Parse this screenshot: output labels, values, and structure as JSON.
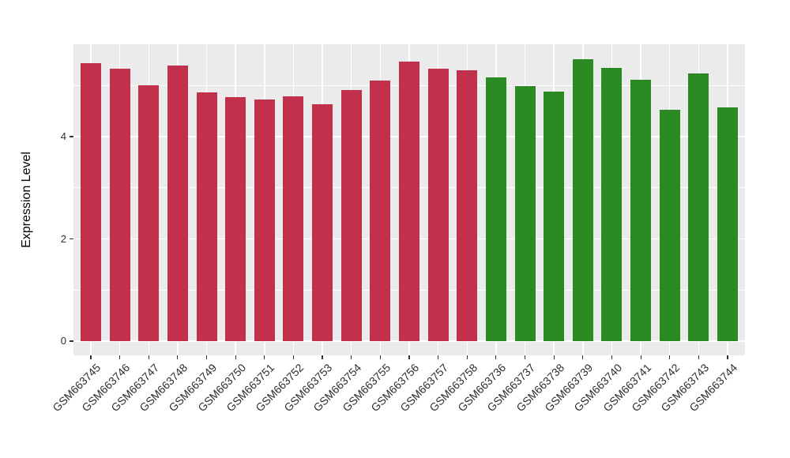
{
  "figure": {
    "background": "#FFFFFF"
  },
  "chart_data": {
    "type": "bar",
    "title": "",
    "xlabel": "",
    "ylabel": "Expression Level",
    "ylim": [
      0,
      5.8
    ],
    "yticks": [
      0,
      2,
      4
    ],
    "ytick_labels": [
      "0",
      "2",
      "4"
    ],
    "yticks_minor": [
      1,
      3,
      5
    ],
    "grid": "on",
    "legend": "none",
    "panel_background": "#EBEBEB",
    "gridline_color": "#FFFFFF",
    "tick_color": "#333333",
    "axis_text_color": "#2E2E2E",
    "bar_width_fraction": 0.71,
    "categories": [
      "GSM663745",
      "GSM663746",
      "GSM663747",
      "GSM663748",
      "GSM663749",
      "GSM663750",
      "GSM663751",
      "GSM663752",
      "GSM663753",
      "GSM663754",
      "GSM663755",
      "GSM663756",
      "GSM663757",
      "GSM663758",
      "GSM663736",
      "GSM663737",
      "GSM663738",
      "GSM663739",
      "GSM663740",
      "GSM663741",
      "GSM663742",
      "GSM663743",
      "GSM663744"
    ],
    "values": [
      5.44,
      5.33,
      5.0,
      5.39,
      4.86,
      4.78,
      4.73,
      4.79,
      4.63,
      4.91,
      5.1,
      5.47,
      5.33,
      5.29,
      5.16,
      4.99,
      4.88,
      5.52,
      5.35,
      5.11,
      4.53,
      5.24,
      4.57
    ],
    "groups": [
      "red",
      "red",
      "red",
      "red",
      "red",
      "red",
      "red",
      "red",
      "red",
      "red",
      "red",
      "red",
      "red",
      "red",
      "green",
      "green",
      "green",
      "green",
      "green",
      "green",
      "green",
      "green",
      "green"
    ],
    "group_colors": {
      "red": "#C2314B",
      "green": "#2B8B22"
    }
  }
}
